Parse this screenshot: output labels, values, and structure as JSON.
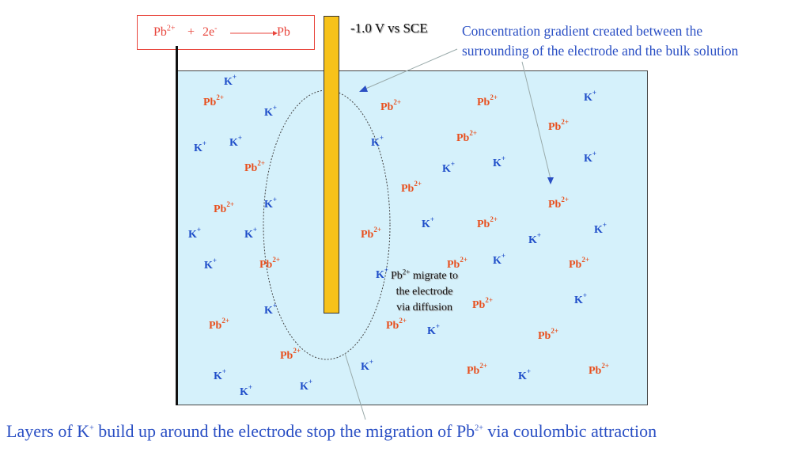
{
  "reaction": {
    "reactant": "Pb",
    "reactant_charge": "2+",
    "plus": "+",
    "electrons": "2e",
    "electron_charge": "-",
    "product": "Pb"
  },
  "potential_label": "-1.0 V vs SCE",
  "gradient_note": {
    "line1": "Concentration gradient created between the",
    "line2": "surrounding of the electrode and the bulk solution"
  },
  "diffusion_note": {
    "line1_prefix": "Pb",
    "line1_charge": "2+",
    "line1_suffix": " migrate to",
    "line2": "the electrode",
    "line3": "via diffusion"
  },
  "ion_labels": {
    "pb_symbol": "Pb",
    "pb_charge": "2+",
    "k_symbol": "K",
    "k_charge": "+"
  },
  "caption": {
    "part1": "Layers of K",
    "part1_charge": "+",
    "part2": " build up around the electrode stop the migration of Pb",
    "part2_charge": "2+",
    "part3": " via coulombic attraction"
  },
  "colors": {
    "pb_ion": "#e8501e",
    "k_ion": "#1f4ec9",
    "solution": "#d5f1fb",
    "electrode": "#f7c21a",
    "note_text": "#2a4fc4"
  }
}
